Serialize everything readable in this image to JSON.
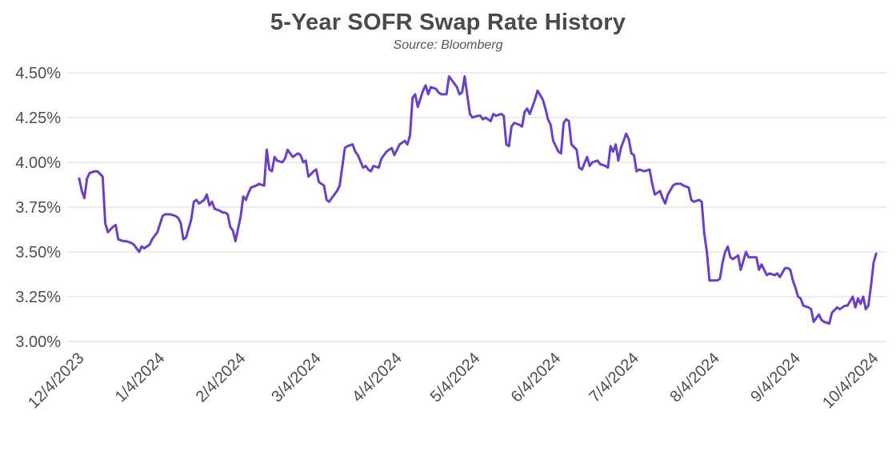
{
  "header": {
    "title": "5-Year SOFR Swap Rate History",
    "subtitle": "Source: Bloomberg"
  },
  "colors": {
    "line": "#6A3FC9",
    "grid": "#e6e6e6",
    "tick_text": "#4d4d4d",
    "title_text": "#4a4a4a",
    "background": "#ffffff"
  },
  "chart_data": {
    "type": "line",
    "title": "5-Year SOFR Swap Rate History",
    "subtitle": "Source: Bloomberg",
    "xlabel": "",
    "ylabel": "",
    "y_unit": "%",
    "ylim": [
      3.0,
      4.5
    ],
    "y_tick_step": 0.25,
    "y_ticks": [
      "4.50%",
      "4.25%",
      "4.00%",
      "3.75%",
      "3.50%",
      "3.25%",
      "3.00%"
    ],
    "x_ticks": [
      "12/4/2023",
      "1/4/2024",
      "2/4/2024",
      "3/4/2024",
      "4/4/2024",
      "5/4/2024",
      "6/4/2024",
      "7/4/2024",
      "8/4/2024",
      "9/4/2024",
      "10/4/2024"
    ],
    "x_tick_dates": [
      "2023-12-04",
      "2024-01-04",
      "2024-02-04",
      "2024-03-04",
      "2024-04-04",
      "2024-05-04",
      "2024-06-04",
      "2024-07-04",
      "2024-08-04",
      "2024-09-04",
      "2024-10-04"
    ],
    "grid": "horizontal",
    "legend": "none",
    "series": [
      {
        "name": "5-Year SOFR Swap Rate",
        "color": "#6A3FC9",
        "points": [
          [
            "2023-12-04",
            3.91
          ],
          [
            "2023-12-05",
            3.84
          ],
          [
            "2023-12-06",
            3.8
          ],
          [
            "2023-12-07",
            3.91
          ],
          [
            "2023-12-08",
            3.94
          ],
          [
            "2023-12-10",
            3.95
          ],
          [
            "2023-12-11",
            3.95
          ],
          [
            "2023-12-13",
            3.92
          ],
          [
            "2023-12-14",
            3.66
          ],
          [
            "2023-12-15",
            3.61
          ],
          [
            "2023-12-17",
            3.64
          ],
          [
            "2023-12-18",
            3.65
          ],
          [
            "2023-12-19",
            3.57
          ],
          [
            "2023-12-21",
            3.56
          ],
          [
            "2023-12-22",
            3.56
          ],
          [
            "2023-12-24",
            3.55
          ],
          [
            "2023-12-25",
            3.54
          ],
          [
            "2023-12-27",
            3.5
          ],
          [
            "2023-12-28",
            3.53
          ],
          [
            "2023-12-29",
            3.52
          ],
          [
            "2023-12-31",
            3.54
          ],
          [
            "2024-01-01",
            3.57
          ],
          [
            "2024-01-02",
            3.59
          ],
          [
            "2024-01-03",
            3.61
          ],
          [
            "2024-01-05",
            3.7
          ],
          [
            "2024-01-06",
            3.71
          ],
          [
            "2024-01-08",
            3.71
          ],
          [
            "2024-01-10",
            3.7
          ],
          [
            "2024-01-11",
            3.69
          ],
          [
            "2024-01-12",
            3.66
          ],
          [
            "2024-01-13",
            3.57
          ],
          [
            "2024-01-14",
            3.58
          ],
          [
            "2024-01-16",
            3.68
          ],
          [
            "2024-01-17",
            3.78
          ],
          [
            "2024-01-18",
            3.79
          ],
          [
            "2024-01-19",
            3.77
          ],
          [
            "2024-01-21",
            3.79
          ],
          [
            "2024-01-22",
            3.82
          ],
          [
            "2024-01-23",
            3.76
          ],
          [
            "2024-01-24",
            3.78
          ],
          [
            "2024-01-25",
            3.74
          ],
          [
            "2024-01-27",
            3.73
          ],
          [
            "2024-01-28",
            3.72
          ],
          [
            "2024-01-29",
            3.72
          ],
          [
            "2024-01-30",
            3.71
          ],
          [
            "2024-01-31",
            3.64
          ],
          [
            "2024-02-01",
            3.62
          ],
          [
            "2024-02-02",
            3.56
          ],
          [
            "2024-02-04",
            3.7
          ],
          [
            "2024-02-05",
            3.81
          ],
          [
            "2024-02-06",
            3.79
          ],
          [
            "2024-02-07",
            3.83
          ],
          [
            "2024-02-08",
            3.86
          ],
          [
            "2024-02-10",
            3.87
          ],
          [
            "2024-02-11",
            3.88
          ],
          [
            "2024-02-13",
            3.87
          ],
          [
            "2024-02-14",
            4.07
          ],
          [
            "2024-02-15",
            3.96
          ],
          [
            "2024-02-16",
            3.95
          ],
          [
            "2024-02-17",
            4.03
          ],
          [
            "2024-02-18",
            4.01
          ],
          [
            "2024-02-20",
            4.0
          ],
          [
            "2024-02-21",
            4.02
          ],
          [
            "2024-02-22",
            4.07
          ],
          [
            "2024-02-23",
            4.05
          ],
          [
            "2024-02-24",
            4.03
          ],
          [
            "2024-02-26",
            4.05
          ],
          [
            "2024-02-27",
            4.04
          ],
          [
            "2024-02-28",
            4.0
          ],
          [
            "2024-02-29",
            4.01
          ],
          [
            "2024-03-01",
            3.92
          ],
          [
            "2024-03-03",
            3.95
          ],
          [
            "2024-03-04",
            3.96
          ],
          [
            "2024-03-05",
            3.89
          ],
          [
            "2024-03-07",
            3.87
          ],
          [
            "2024-03-08",
            3.79
          ],
          [
            "2024-03-09",
            3.78
          ],
          [
            "2024-03-10",
            3.8
          ],
          [
            "2024-03-12",
            3.84
          ],
          [
            "2024-03-13",
            3.87
          ],
          [
            "2024-03-15",
            4.08
          ],
          [
            "2024-03-16",
            4.09
          ],
          [
            "2024-03-18",
            4.1
          ],
          [
            "2024-03-19",
            4.06
          ],
          [
            "2024-03-20",
            4.04
          ],
          [
            "2024-03-22",
            3.97
          ],
          [
            "2024-03-23",
            3.98
          ],
          [
            "2024-03-24",
            3.96
          ],
          [
            "2024-03-25",
            3.95
          ],
          [
            "2024-03-26",
            3.98
          ],
          [
            "2024-03-28",
            3.97
          ],
          [
            "2024-03-29",
            4.02
          ],
          [
            "2024-03-30",
            4.04
          ],
          [
            "2024-03-31",
            4.06
          ],
          [
            "2024-04-01",
            4.07
          ],
          [
            "2024-04-02",
            4.08
          ],
          [
            "2024-04-03",
            4.04
          ],
          [
            "2024-04-04",
            4.07
          ],
          [
            "2024-04-05",
            4.1
          ],
          [
            "2024-04-07",
            4.12
          ],
          [
            "2024-04-08",
            4.1
          ],
          [
            "2024-04-09",
            4.15
          ],
          [
            "2024-04-10",
            4.36
          ],
          [
            "2024-04-11",
            4.38
          ],
          [
            "2024-04-12",
            4.31
          ],
          [
            "2024-04-14",
            4.4
          ],
          [
            "2024-04-15",
            4.43
          ],
          [
            "2024-04-16",
            4.38
          ],
          [
            "2024-04-17",
            4.42
          ],
          [
            "2024-04-19",
            4.41
          ],
          [
            "2024-04-20",
            4.39
          ],
          [
            "2024-04-21",
            4.38
          ],
          [
            "2024-04-23",
            4.38
          ],
          [
            "2024-04-24",
            4.48
          ],
          [
            "2024-04-26",
            4.44
          ],
          [
            "2024-04-27",
            4.42
          ],
          [
            "2024-04-28",
            4.38
          ],
          [
            "2024-04-29",
            4.39
          ],
          [
            "2024-04-30",
            4.48
          ],
          [
            "2024-05-02",
            4.27
          ],
          [
            "2024-05-03",
            4.25
          ],
          [
            "2024-05-05",
            4.26
          ],
          [
            "2024-05-06",
            4.26
          ],
          [
            "2024-05-07",
            4.24
          ],
          [
            "2024-05-08",
            4.25
          ],
          [
            "2024-05-10",
            4.23
          ],
          [
            "2024-05-11",
            4.27
          ],
          [
            "2024-05-12",
            4.26
          ],
          [
            "2024-05-14",
            4.27
          ],
          [
            "2024-05-15",
            4.26
          ],
          [
            "2024-05-16",
            4.1
          ],
          [
            "2024-05-17",
            4.09
          ],
          [
            "2024-05-18",
            4.2
          ],
          [
            "2024-05-19",
            4.22
          ],
          [
            "2024-05-21",
            4.21
          ],
          [
            "2024-05-22",
            4.2
          ],
          [
            "2024-05-23",
            4.28
          ],
          [
            "2024-05-24",
            4.3
          ],
          [
            "2024-05-25",
            4.27
          ],
          [
            "2024-05-26",
            4.31
          ],
          [
            "2024-05-27",
            4.35
          ],
          [
            "2024-05-28",
            4.4
          ],
          [
            "2024-05-30",
            4.35
          ],
          [
            "2024-05-31",
            4.3
          ],
          [
            "2024-06-01",
            4.24
          ],
          [
            "2024-06-02",
            4.21
          ],
          [
            "2024-06-03",
            4.12
          ],
          [
            "2024-06-05",
            4.06
          ],
          [
            "2024-06-06",
            4.05
          ],
          [
            "2024-06-07",
            4.22
          ],
          [
            "2024-06-08",
            4.24
          ],
          [
            "2024-06-09",
            4.23
          ],
          [
            "2024-06-10",
            4.1
          ],
          [
            "2024-06-12",
            4.07
          ],
          [
            "2024-06-13",
            3.97
          ],
          [
            "2024-06-14",
            3.96
          ],
          [
            "2024-06-16",
            4.03
          ],
          [
            "2024-06-17",
            3.98
          ],
          [
            "2024-06-18",
            4.0
          ],
          [
            "2024-06-20",
            4.01
          ],
          [
            "2024-06-21",
            3.99
          ],
          [
            "2024-06-23",
            3.98
          ],
          [
            "2024-06-24",
            3.97
          ],
          [
            "2024-06-25",
            4.09
          ],
          [
            "2024-06-26",
            4.06
          ],
          [
            "2024-06-27",
            4.1
          ],
          [
            "2024-06-28",
            4.01
          ],
          [
            "2024-06-29",
            4.08
          ],
          [
            "2024-07-01",
            4.16
          ],
          [
            "2024-07-02",
            4.13
          ],
          [
            "2024-07-03",
            4.05
          ],
          [
            "2024-07-04",
            4.04
          ],
          [
            "2024-07-05",
            3.95
          ],
          [
            "2024-07-06",
            3.96
          ],
          [
            "2024-07-08",
            3.95
          ],
          [
            "2024-07-10",
            3.96
          ],
          [
            "2024-07-11",
            3.88
          ],
          [
            "2024-07-12",
            3.82
          ],
          [
            "2024-07-14",
            3.84
          ],
          [
            "2024-07-15",
            3.8
          ],
          [
            "2024-07-16",
            3.77
          ],
          [
            "2024-07-17",
            3.82
          ],
          [
            "2024-07-19",
            3.87
          ],
          [
            "2024-07-20",
            3.88
          ],
          [
            "2024-07-22",
            3.88
          ],
          [
            "2024-07-23",
            3.87
          ],
          [
            "2024-07-25",
            3.86
          ],
          [
            "2024-07-26",
            3.79
          ],
          [
            "2024-07-27",
            3.78
          ],
          [
            "2024-07-29",
            3.79
          ],
          [
            "2024-07-30",
            3.78
          ],
          [
            "2024-07-31",
            3.6
          ],
          [
            "2024-08-01",
            3.5
          ],
          [
            "2024-08-02",
            3.34
          ],
          [
            "2024-08-05",
            3.34
          ],
          [
            "2024-08-06",
            3.35
          ],
          [
            "2024-08-07",
            3.44
          ],
          [
            "2024-08-08",
            3.5
          ],
          [
            "2024-08-09",
            3.53
          ],
          [
            "2024-08-10",
            3.47
          ],
          [
            "2024-08-11",
            3.46
          ],
          [
            "2024-08-13",
            3.48
          ],
          [
            "2024-08-14",
            3.4
          ],
          [
            "2024-08-15",
            3.45
          ],
          [
            "2024-08-16",
            3.5
          ],
          [
            "2024-08-17",
            3.47
          ],
          [
            "2024-08-19",
            3.47
          ],
          [
            "2024-08-20",
            3.47
          ],
          [
            "2024-08-21",
            3.4
          ],
          [
            "2024-08-22",
            3.43
          ],
          [
            "2024-08-24",
            3.37
          ],
          [
            "2024-08-25",
            3.38
          ],
          [
            "2024-08-27",
            3.37
          ],
          [
            "2024-08-28",
            3.38
          ],
          [
            "2024-08-29",
            3.36
          ],
          [
            "2024-08-31",
            3.41
          ],
          [
            "2024-09-01",
            3.41
          ],
          [
            "2024-09-02",
            3.4
          ],
          [
            "2024-09-03",
            3.34
          ],
          [
            "2024-09-04",
            3.3
          ],
          [
            "2024-09-05",
            3.25
          ],
          [
            "2024-09-06",
            3.24
          ],
          [
            "2024-09-07",
            3.2
          ],
          [
            "2024-09-09",
            3.19
          ],
          [
            "2024-09-10",
            3.18
          ],
          [
            "2024-09-11",
            3.11
          ],
          [
            "2024-09-13",
            3.15
          ],
          [
            "2024-09-14",
            3.12
          ],
          [
            "2024-09-15",
            3.11
          ],
          [
            "2024-09-17",
            3.1
          ],
          [
            "2024-09-18",
            3.16
          ],
          [
            "2024-09-20",
            3.19
          ],
          [
            "2024-09-21",
            3.18
          ],
          [
            "2024-09-23",
            3.2
          ],
          [
            "2024-09-24",
            3.2
          ],
          [
            "2024-09-26",
            3.25
          ],
          [
            "2024-09-27",
            3.19
          ],
          [
            "2024-09-28",
            3.24
          ],
          [
            "2024-09-29",
            3.21
          ],
          [
            "2024-09-30",
            3.25
          ],
          [
            "2024-10-01",
            3.18
          ],
          [
            "2024-10-02",
            3.2
          ],
          [
            "2024-10-03",
            3.31
          ],
          [
            "2024-10-04",
            3.44
          ],
          [
            "2024-10-05",
            3.49
          ]
        ]
      }
    ]
  }
}
